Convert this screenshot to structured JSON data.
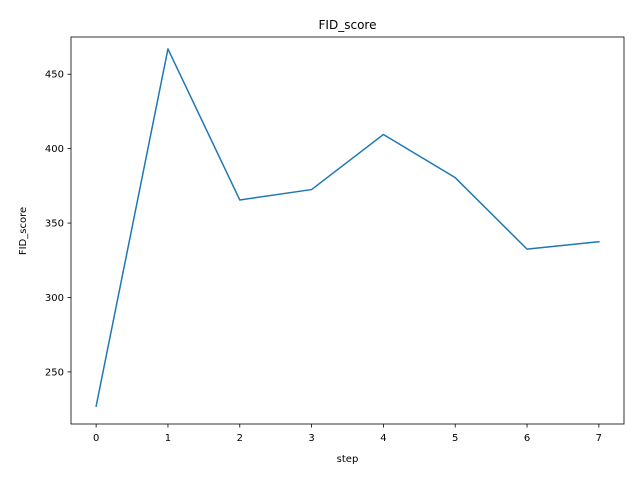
{
  "chart_data": {
    "type": "line",
    "title": "FID_score",
    "xlabel": "step",
    "ylabel": "FID_score",
    "x": [
      0,
      1,
      2,
      3,
      4,
      5,
      6,
      7
    ],
    "series": [
      {
        "values": [
          227,
          467,
          365.5,
          372.5,
          409.5,
          380.5,
          332.5,
          337.5
        ],
        "color": "#1f77b4"
      }
    ],
    "xlim": [
      -0.35,
      7.35
    ],
    "ylim": [
      215,
      475
    ],
    "xticks": [
      0,
      1,
      2,
      3,
      4,
      5,
      6,
      7
    ],
    "yticks": [
      250,
      300,
      350,
      400,
      450
    ],
    "grid": false,
    "legend": "none"
  }
}
